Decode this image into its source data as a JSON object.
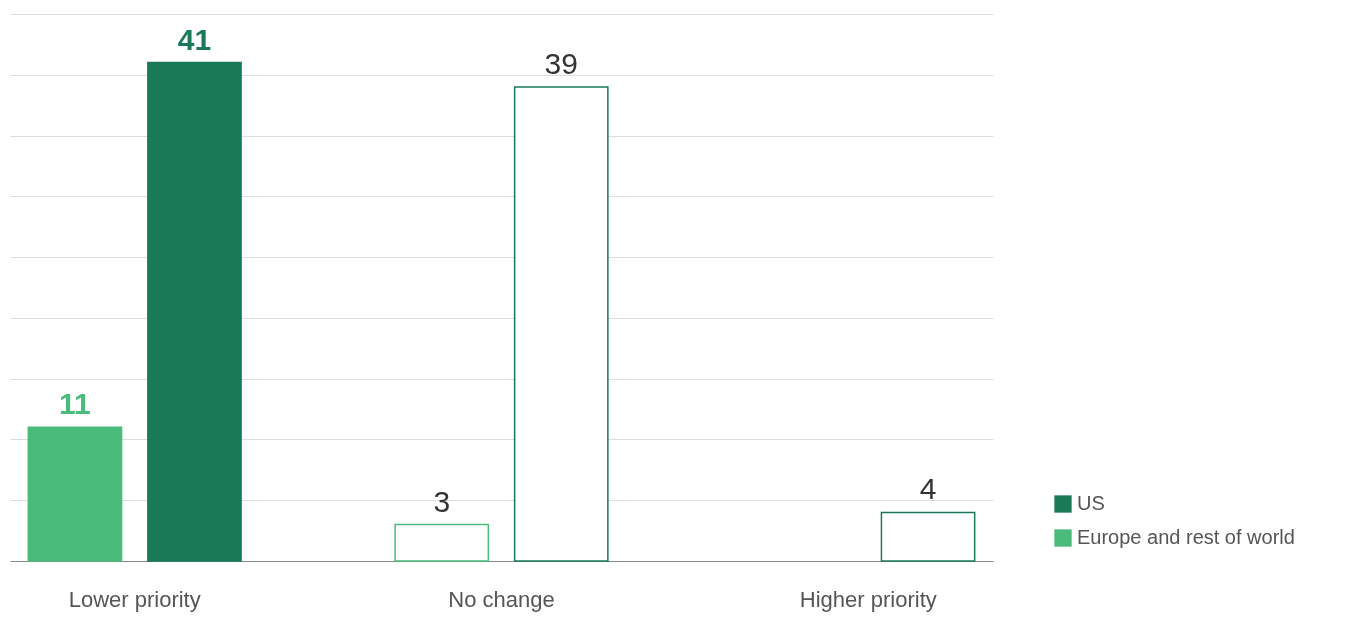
{
  "chart_data": {
    "type": "bar",
    "categories": [
      "Lower priority",
      "No change",
      "Higher priority"
    ],
    "series": [
      {
        "name": "Europe and rest of world",
        "color": "#4bbb7b",
        "values": [
          11,
          3,
          null
        ],
        "colors": [
          "#4bbb7b",
          "#ffffff",
          "#ffffff"
        ]
      },
      {
        "name": "US",
        "color": "#1a7a57",
        "values": [
          41,
          39,
          4
        ],
        "colors": [
          "#1a7a57",
          "#ffffff",
          "#ffffff"
        ]
      }
    ],
    "ylim": [
      0,
      45
    ],
    "yticks": [
      {
        "value": 0,
        "label": null
      },
      {
        "value": 5,
        "label": null
      },
      {
        "value": 10,
        "label": null
      },
      {
        "value": 15,
        "label": null
      },
      {
        "value": 20,
        "label": null
      },
      {
        "value": 25,
        "label": null
      },
      {
        "value": 30,
        "label": null
      },
      {
        "value": 35,
        "label": null
      },
      {
        "value": 40,
        "label": null
      },
      {
        "value": 45,
        "label": null
      }
    ],
    "tick_labels": "x",
    "grid": "y",
    "data_labels": true,
    "legend": "bottom right"
  }
}
